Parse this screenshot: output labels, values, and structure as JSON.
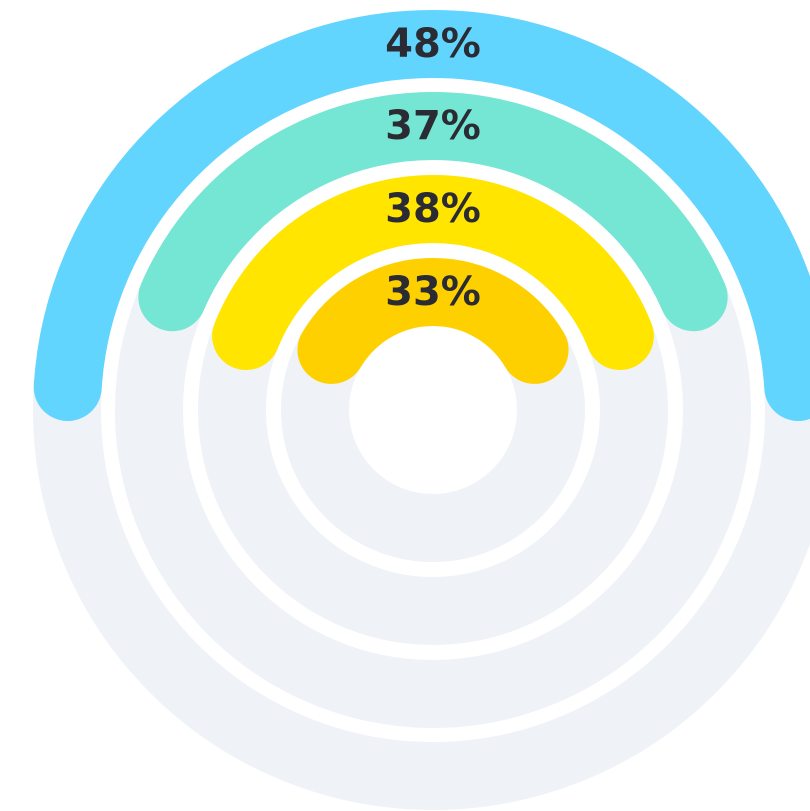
{
  "chart_data": {
    "type": "radialBar",
    "values": [
      48,
      37,
      38,
      33
    ],
    "value_labels": [
      "48%",
      "37%",
      "38%",
      "33%"
    ],
    "colors": [
      "#62d5fe",
      "#74e6d3",
      "#ffe500",
      "#ffd000"
    ],
    "ylim": [
      0,
      100
    ]
  }
}
